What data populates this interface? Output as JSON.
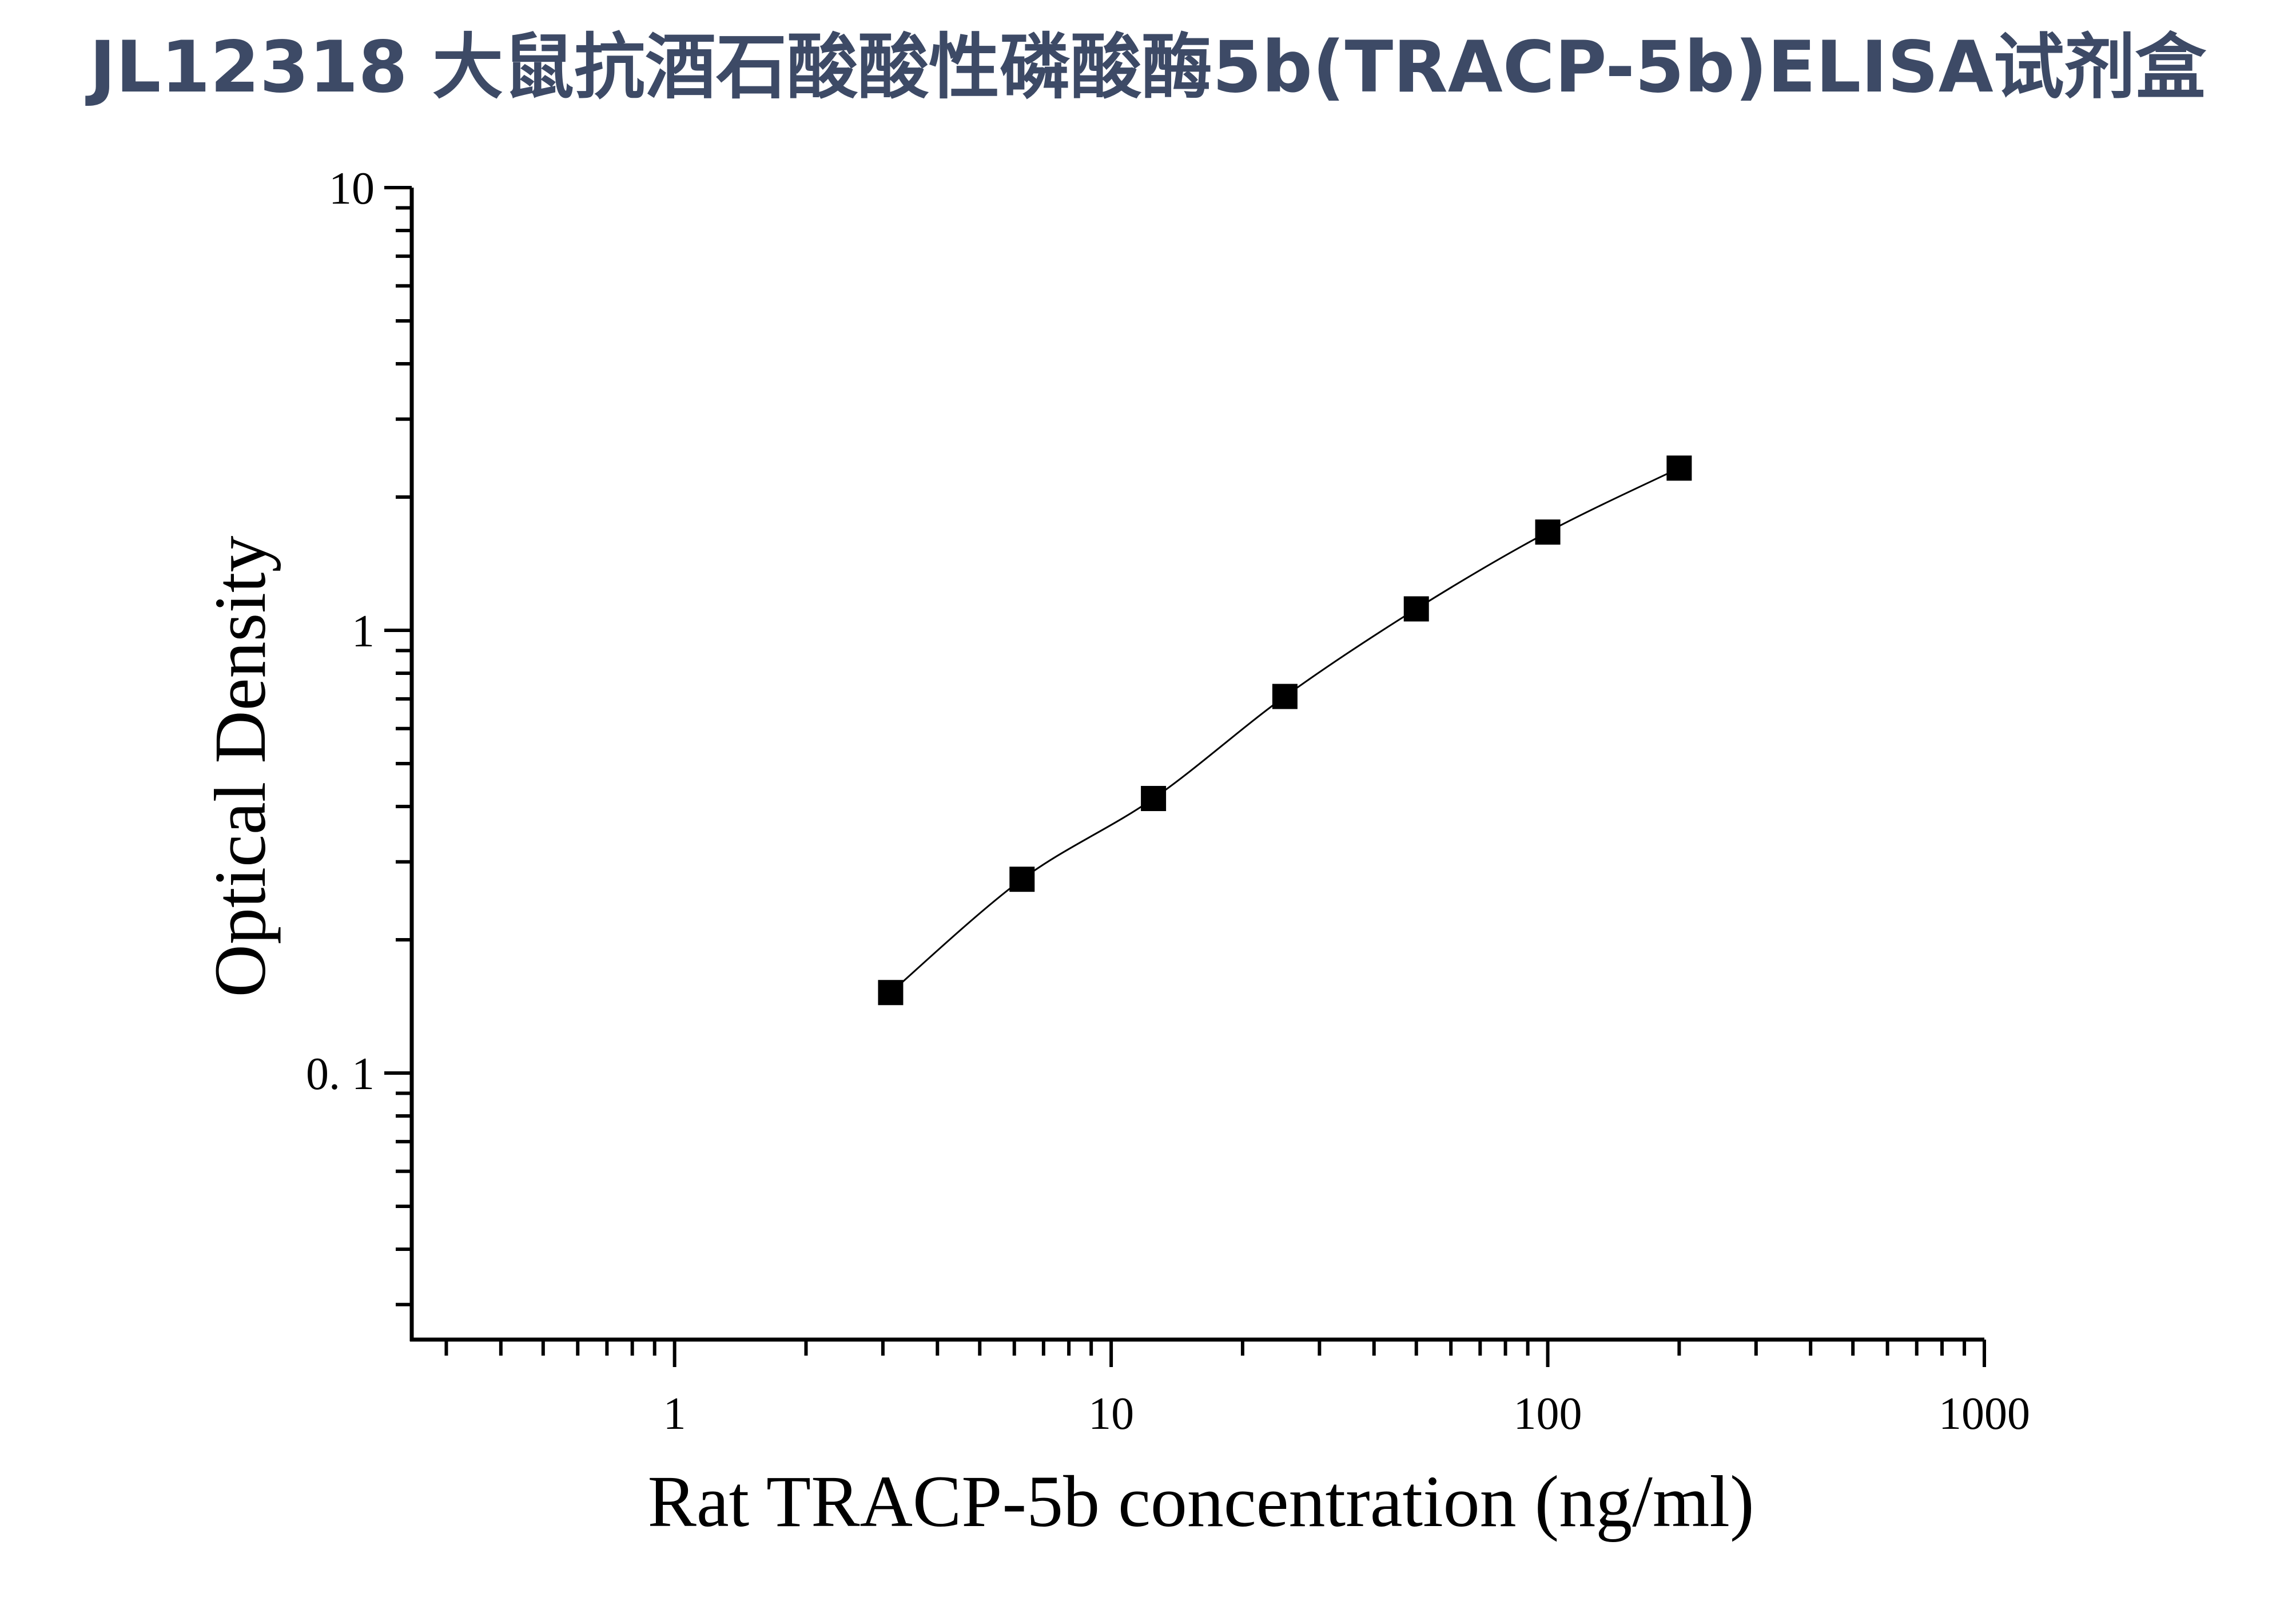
{
  "chart_data": {
    "type": "scatter",
    "title": "JL12318 大鼠抗酒石酸酸性磷酸酶5b(TRACP-5b)ELISA试剂盒",
    "xlabel": "Rat TRACP-5b concentration (ng/ml)",
    "ylabel": "Optical Density",
    "xscale": "log",
    "yscale": "log",
    "xlim": [
      0.25,
      1000
    ],
    "ylim": [
      0.025,
      10
    ],
    "x_ticks": [
      {
        "value": 1,
        "label": "1"
      },
      {
        "value": 10,
        "label": "10"
      },
      {
        "value": 100,
        "label": "100"
      },
      {
        "value": 1000,
        "label": "1000"
      }
    ],
    "y_ticks": [
      {
        "value": 0.1,
        "label": "0. 1"
      },
      {
        "value": 1,
        "label": "1"
      },
      {
        "value": 10,
        "label": "10"
      }
    ],
    "grid": false,
    "legend": "none",
    "marker": "square",
    "fit_line": "smooth curve through points",
    "series": [
      {
        "x": [
          3.125,
          6.25,
          12.5,
          25,
          50,
          100,
          200
        ],
        "y": [
          0.152,
          0.274,
          0.417,
          0.709,
          1.118,
          1.667,
          2.325
        ]
      }
    ],
    "colors": {
      "title": "#3d4a66",
      "axis": "#000000",
      "marker": "#000000"
    }
  }
}
